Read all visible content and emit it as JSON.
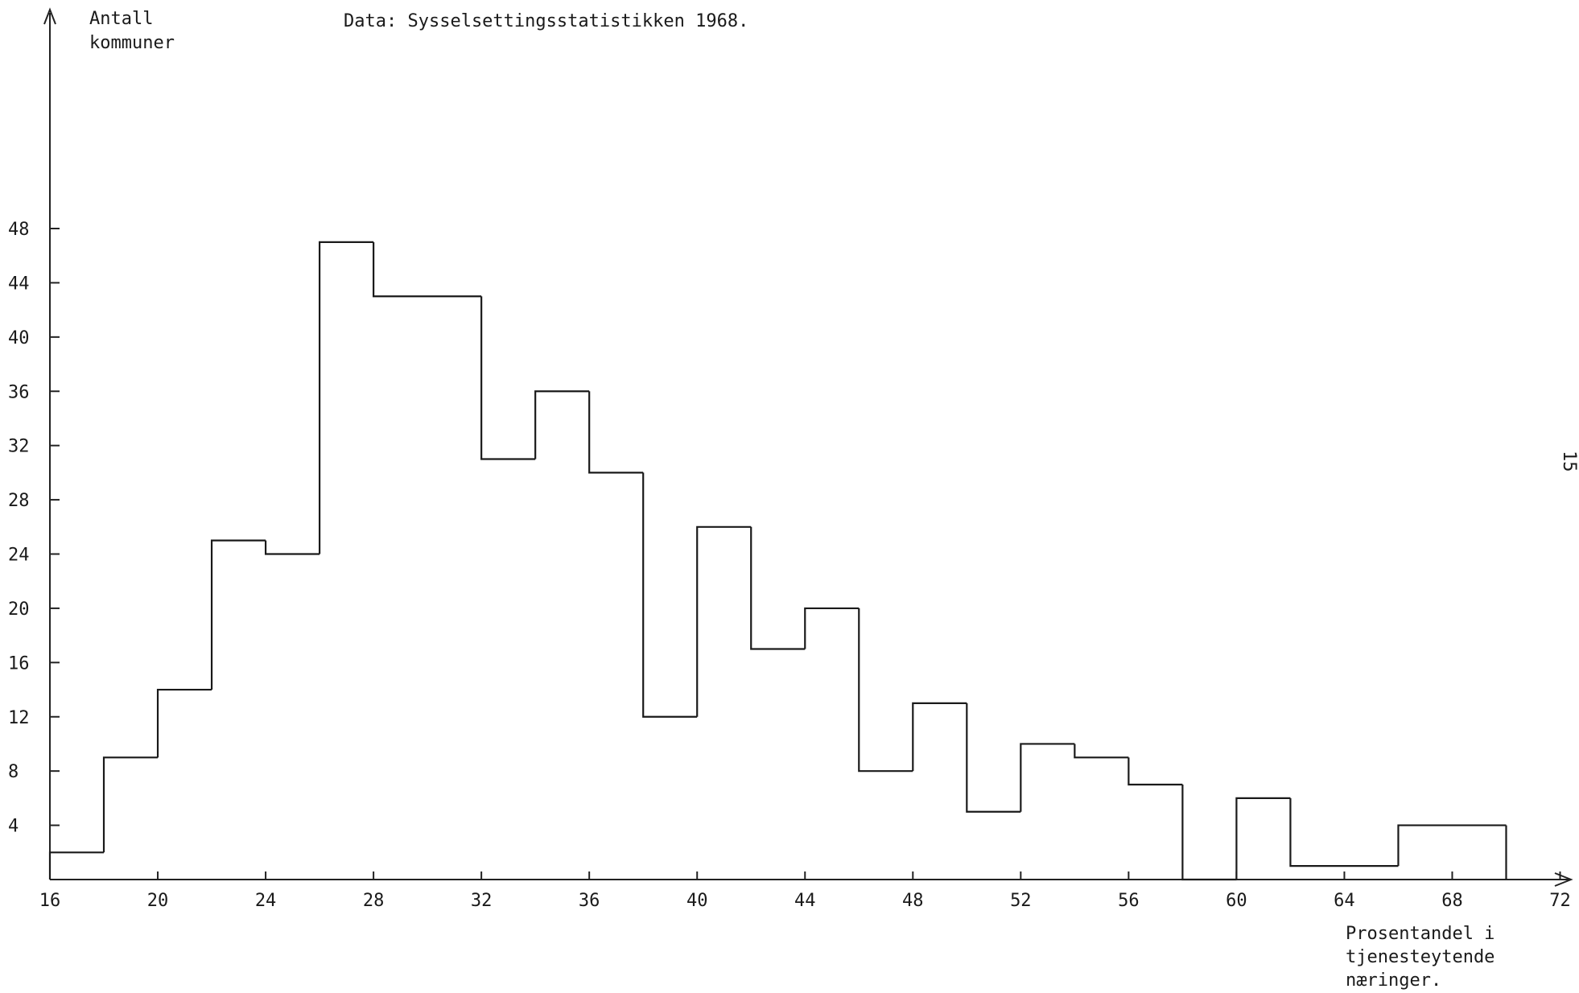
{
  "chart_data": {
    "type": "bar",
    "title": "Data:  Sysselsettingsstatistikken 1968.",
    "ylabel_lines": [
      "Antall",
      "kommuner"
    ],
    "xlabel_lines": [
      "Prosentandel i",
      "tjenesteytende",
      "næringer."
    ],
    "side_number": "15",
    "xlim": [
      16,
      72
    ],
    "ylim": [
      0,
      48
    ],
    "x_ticks": [
      16,
      20,
      24,
      28,
      32,
      36,
      40,
      44,
      48,
      52,
      56,
      60,
      64,
      68,
      72
    ],
    "y_ticks": [
      4,
      8,
      12,
      16,
      20,
      24,
      28,
      32,
      36,
      40,
      44,
      48
    ],
    "bins": [
      {
        "x0": 16,
        "x1": 18,
        "value": 2
      },
      {
        "x0": 18,
        "x1": 20,
        "value": 9
      },
      {
        "x0": 20,
        "x1": 22,
        "value": 14
      },
      {
        "x0": 22,
        "x1": 24,
        "value": 25
      },
      {
        "x0": 24,
        "x1": 26,
        "value": 24
      },
      {
        "x0": 26,
        "x1": 28,
        "value": 47
      },
      {
        "x0": 28,
        "x1": 32,
        "value": 43
      },
      {
        "x0": 32,
        "x1": 34,
        "value": 31
      },
      {
        "x0": 34,
        "x1": 36,
        "value": 36
      },
      {
        "x0": 36,
        "x1": 38,
        "value": 30
      },
      {
        "x0": 38,
        "x1": 40,
        "value": 12
      },
      {
        "x0": 40,
        "x1": 42,
        "value": 26
      },
      {
        "x0": 42,
        "x1": 44,
        "value": 17
      },
      {
        "x0": 44,
        "x1": 46,
        "value": 20
      },
      {
        "x0": 46,
        "x1": 48,
        "value": 8
      },
      {
        "x0": 48,
        "x1": 50,
        "value": 13
      },
      {
        "x0": 50,
        "x1": 52,
        "value": 5
      },
      {
        "x0": 52,
        "x1": 54,
        "value": 10
      },
      {
        "x0": 54,
        "x1": 56,
        "value": 9
      },
      {
        "x0": 56,
        "x1": 58,
        "value": 7
      },
      {
        "x0": 58,
        "x1": 60,
        "value": 0
      },
      {
        "x0": 60,
        "x1": 62,
        "value": 6
      },
      {
        "x0": 62,
        "x1": 66,
        "value": 1
      },
      {
        "x0": 66,
        "x1": 70,
        "value": 4
      }
    ],
    "grid": false,
    "legend": "none"
  }
}
